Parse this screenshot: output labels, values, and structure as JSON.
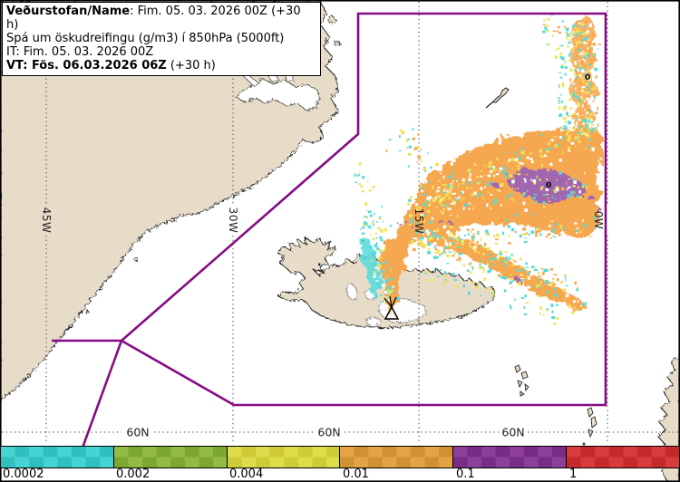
{
  "header": {
    "line1_bold": "Veðurstofan/Name",
    "line1_rest": ": Fim. 05. 03. 2026 00Z (+30 h)",
    "line2": "Spá um öskudreifingu (g/m3) í 850hPa (5000ft)",
    "line3": "IT: Fim. 05. 03. 2026 00Z",
    "line4_bold": "VT: Fös. 06.03.2026 06Z",
    "line4_rest": " (+30 h)"
  },
  "map": {
    "meridians": [
      {
        "label": "45W"
      },
      {
        "label": "30W"
      },
      {
        "label": "15W"
      },
      {
        "label": "0W"
      }
    ],
    "latitudes": [
      {
        "label": "60N"
      },
      {
        "label": "60N"
      },
      {
        "label": "60N"
      }
    ],
    "contour_labels": [
      {
        "text": "0"
      },
      {
        "text": "0"
      }
    ],
    "volcano_symbol": "volcano-eruption-icon"
  },
  "colorbar": {
    "ticks": [
      "0.0002",
      "0.002",
      "0.004",
      "0.01",
      "0.1",
      "1"
    ],
    "segments": [
      {
        "name": "cyan",
        "light": "#46d3d3",
        "dark": "#2fbfbf"
      },
      {
        "name": "green",
        "light": "#93bb43",
        "dark": "#7da830"
      },
      {
        "name": "yellow",
        "light": "#dedc4b",
        "dark": "#cecb36"
      },
      {
        "name": "orange",
        "light": "#e3a446",
        "dark": "#d09132"
      },
      {
        "name": "purple",
        "light": "#8d4099",
        "dark": "#792c86"
      },
      {
        "name": "red",
        "light": "#d83b3b",
        "dark": "#c52a2a"
      }
    ]
  },
  "colors": {
    "land": "#e7dcc8",
    "ocean": "#ffffff",
    "boundary_purple": "#850b85",
    "plume_orange": "#f6a851",
    "plume_cyan": "#55dbdb",
    "plume_yellow": "#efe357",
    "plume_purple": "#a066b0"
  }
}
